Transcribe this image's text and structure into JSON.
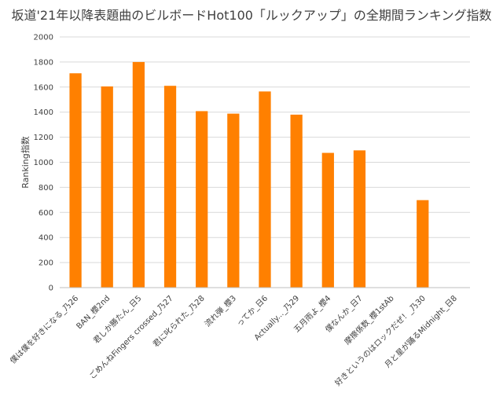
{
  "chart_data": {
    "type": "bar",
    "title": "坂道'21年以降表題曲のビルボードHot100「ルックアップ」の全期間ランキング指数",
    "xlabel": "",
    "ylabel": "Ranking指数",
    "ylim": [
      0,
      2000
    ],
    "yticks": [
      "0",
      "200",
      "400",
      "600",
      "800",
      "1000",
      "1200",
      "1400",
      "1600",
      "1800",
      "2000"
    ],
    "grid": true,
    "legend": "none",
    "bar_color": "#FF8000",
    "categories": [
      "僕は僕を好きになる_乃26",
      "BAN_櫻2nd",
      "君しか勝たん_日5",
      "ごめんねFingers crossed_乃27",
      "君に叱られた_乃28",
      "流れ弾_櫻3",
      "ってか_日6",
      "Actually..._乃29",
      "五月雨よ_櫻4",
      "僕なんか_日7",
      "摩擦係数_櫻1stAb",
      "好きというのはロックだぜ！_乃30",
      "月と星が踊るMidnight_日8"
    ],
    "values": [
      1710,
      1605,
      1800,
      1610,
      1408,
      1388,
      1565,
      1380,
      1075,
      1095,
      0,
      698,
      0
    ]
  }
}
